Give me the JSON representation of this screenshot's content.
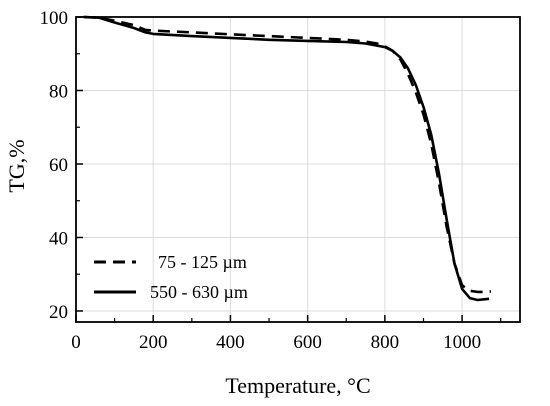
{
  "chart_data": {
    "type": "line",
    "title": "",
    "xlabel": "Temperature, °C",
    "ylabel": "TG,%",
    "xlim": [
      0,
      1150
    ],
    "ylim": [
      17,
      100
    ],
    "xticks": [
      "0",
      "200",
      "400",
      "600",
      "800",
      "1000"
    ],
    "yticks": [
      "20",
      "40",
      "60",
      "80",
      "100"
    ],
    "grid": true,
    "legend_position": "lower-left",
    "series": [
      {
        "name": "75 - 125 µm",
        "style": "dashed",
        "color": "#000000",
        "x": [
          20,
          60,
          100,
          150,
          180,
          200,
          300,
          400,
          500,
          600,
          700,
          750,
          780,
          800,
          820,
          840,
          860,
          880,
          900,
          920,
          940,
          960,
          980,
          1000,
          1020,
          1040,
          1060,
          1075
        ],
        "y": [
          100,
          99.8,
          99,
          97.8,
          96.5,
          96.3,
          95.8,
          95.3,
          94.8,
          94.3,
          93.8,
          93.3,
          92.8,
          92.0,
          90.8,
          88.5,
          84.5,
          79.5,
          73.5,
          65.5,
          55.0,
          43.0,
          33.0,
          27.0,
          25.5,
          25.2,
          25.2,
          25.3
        ]
      },
      {
        "name": "550 - 630 µm",
        "style": "solid",
        "color": "#000000",
        "x": [
          20,
          60,
          100,
          150,
          180,
          200,
          300,
          400,
          500,
          600,
          700,
          750,
          800,
          820,
          840,
          860,
          880,
          900,
          920,
          940,
          960,
          980,
          1000,
          1020,
          1040,
          1060,
          1070
        ],
        "y": [
          100,
          99.8,
          98.5,
          97.0,
          95.8,
          95.4,
          94.8,
          94.3,
          93.8,
          93.5,
          93.2,
          92.8,
          91.8,
          90.8,
          89.0,
          86.0,
          81.5,
          75.5,
          68.0,
          57.5,
          45.0,
          33.0,
          26.0,
          23.5,
          23.0,
          23.2,
          23.3
        ]
      }
    ]
  }
}
